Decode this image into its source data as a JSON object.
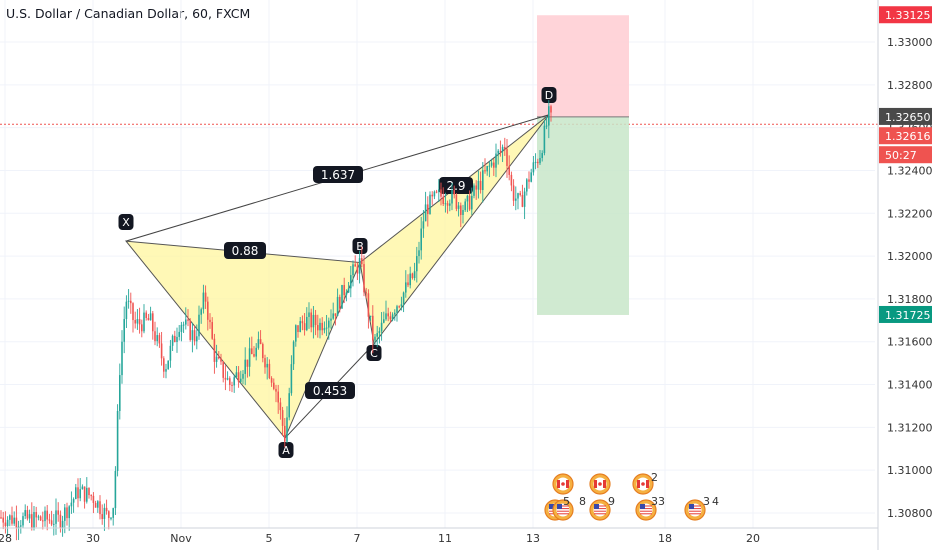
{
  "title": "U.S. Dollar / Canadian Dollar, 60, FXCM",
  "chart_data": {
    "type": "candlestick",
    "ylim": [
      1.3074,
      1.3316
    ],
    "y_ticks": [
      "1.30800",
      "1.31000",
      "1.31200",
      "1.31400",
      "1.31600",
      "1.31800",
      "1.32000",
      "1.32200",
      "1.32400",
      "1.32600",
      "1.32800",
      "1.33000"
    ],
    "x_ticks": [
      "28",
      "30",
      "Nov",
      "5",
      "7",
      "11",
      "13",
      "18",
      "20"
    ],
    "price_tags": [
      {
        "label": "1.33125",
        "bg": "#f23645"
      },
      {
        "label": "1.32650",
        "bg": "#4a4a4a"
      },
      {
        "label": "1.32616",
        "bg": "#ef5350"
      },
      {
        "label": "50:27",
        "bg": "#ef5350"
      },
      {
        "label": "1.31725",
        "bg": "#089981"
      }
    ],
    "current_price": 1.32616,
    "pattern": {
      "points": [
        {
          "label": "X",
          "price": 1.3207
        },
        {
          "label": "A",
          "price": 1.3115
        },
        {
          "label": "B",
          "price": 1.3197
        },
        {
          "label": "C",
          "price": 1.3159
        },
        {
          "label": "D",
          "price": 1.3266
        }
      ],
      "ratios": [
        "0.88",
        "0.453",
        "1.637",
        "2.9"
      ]
    },
    "position": {
      "stop": 1.33125,
      "entry": 1.3265,
      "target": 1.31725
    },
    "events": [
      {
        "label": "2"
      },
      {
        "label": "5"
      },
      {
        "label": "8"
      },
      {
        "label": "9"
      },
      {
        "label": "33"
      },
      {
        "label": "3"
      },
      {
        "label": "4"
      }
    ],
    "colors": {
      "up": "#26a69a",
      "down": "#ef5350",
      "pattern_fill": "#fff59d",
      "profit": "#c8e6c9",
      "loss": "#ffcdd2"
    }
  }
}
